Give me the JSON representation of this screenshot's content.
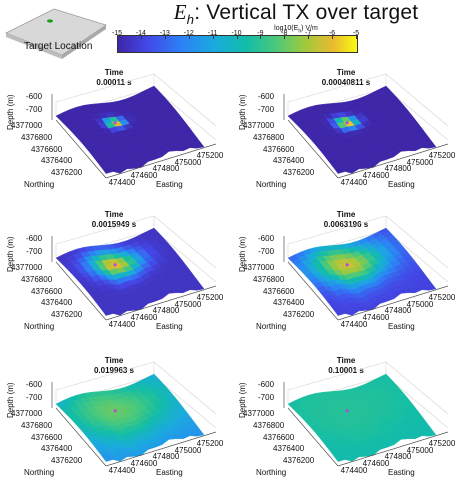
{
  "figure": {
    "title_symbol": "E",
    "title_subscript": "h",
    "title_rest": ": Vertical TX over target",
    "colorbar_label": "log10(E",
    "colorbar_label_sub": "h",
    "colorbar_label_end": ") V/m",
    "colorbar_ticks": [
      "-15",
      "-14",
      "-13",
      "-12",
      "-11",
      "-10",
      "-9",
      "-8",
      "-7",
      "-6",
      "-5"
    ],
    "colorbar_range": [
      -15,
      -5
    ],
    "inset_label": "Target Location"
  },
  "axes": {
    "zlabel": "Depth (m)",
    "ylabel": "Northing",
    "xlabel": "Easting",
    "z_ticks": [
      "-600",
      "-700"
    ],
    "y_ticks": [
      "4377000",
      "4376800",
      "4376600",
      "4376400",
      "4376200"
    ],
    "x_ticks": [
      "474400",
      "474600",
      "474800",
      "475000",
      "475200"
    ]
  },
  "panels": [
    {
      "time_label": "Time",
      "time": "0.00011 s",
      "field_peak": -5.2,
      "field_background": -15.0,
      "spread": 0.1
    },
    {
      "time_label": "Time",
      "time": "0.00040811 s",
      "field_peak": -5.0,
      "field_background": -15.0,
      "spread": 0.12
    },
    {
      "time_label": "Time",
      "time": "0.0015949 s",
      "field_peak": -6.0,
      "field_background": -14.5,
      "spread": 0.28
    },
    {
      "time_label": "Time",
      "time": "0.0063196 s",
      "field_peak": -6.5,
      "field_background": -14.0,
      "spread": 0.45
    },
    {
      "time_label": "Time",
      "time": "0.019963 s",
      "field_peak": -8.0,
      "field_background": -12.0,
      "spread": 0.7
    },
    {
      "time_label": "Time",
      "time": "0.10001 s",
      "field_peak": -9.2,
      "field_background": -10.0,
      "spread": 0.95
    }
  ]
}
